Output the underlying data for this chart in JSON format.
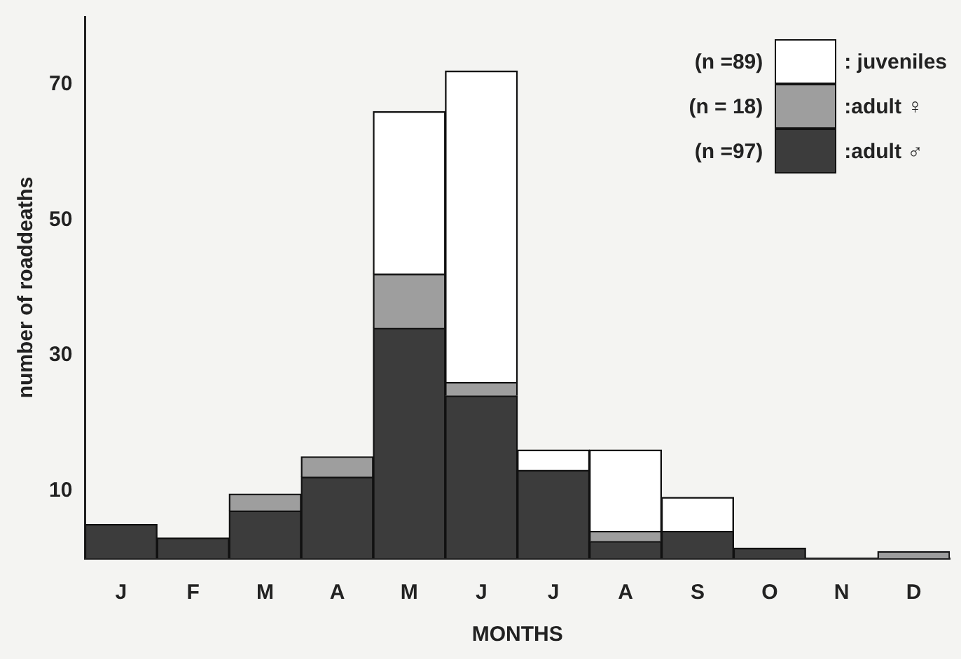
{
  "chart_data": {
    "type": "bar",
    "stacked": true,
    "xlabel": "MONTHS",
    "ylabel": "number of roaddeaths",
    "categories": [
      "J",
      "F",
      "M",
      "A",
      "M",
      "J",
      "J",
      "A",
      "S",
      "O",
      "N",
      "D"
    ],
    "series": [
      {
        "name": ":adult ♂",
        "color": "#3c3c3c",
        "values": [
          5,
          3,
          7,
          12,
          34,
          24,
          13,
          2.5,
          4,
          1.5,
          0,
          0
        ]
      },
      {
        "name": ":adult ♀",
        "color": "#9e9e9e",
        "values": [
          0,
          0,
          2.5,
          3,
          8,
          2,
          0,
          1.5,
          0,
          0,
          0,
          1
        ]
      },
      {
        "name": ": juveniles",
        "color": "#ffffff",
        "values": [
          0,
          0,
          0,
          0,
          24,
          46,
          3,
          12,
          5,
          0,
          0,
          0
        ]
      }
    ],
    "annotations": [
      "(n =97)",
      "(n = 18)",
      "(n =89)"
    ],
    "ylim": [
      0,
      80
    ],
    "yticks": [
      10,
      30,
      50,
      70
    ],
    "grid": false,
    "legend": "top right"
  }
}
